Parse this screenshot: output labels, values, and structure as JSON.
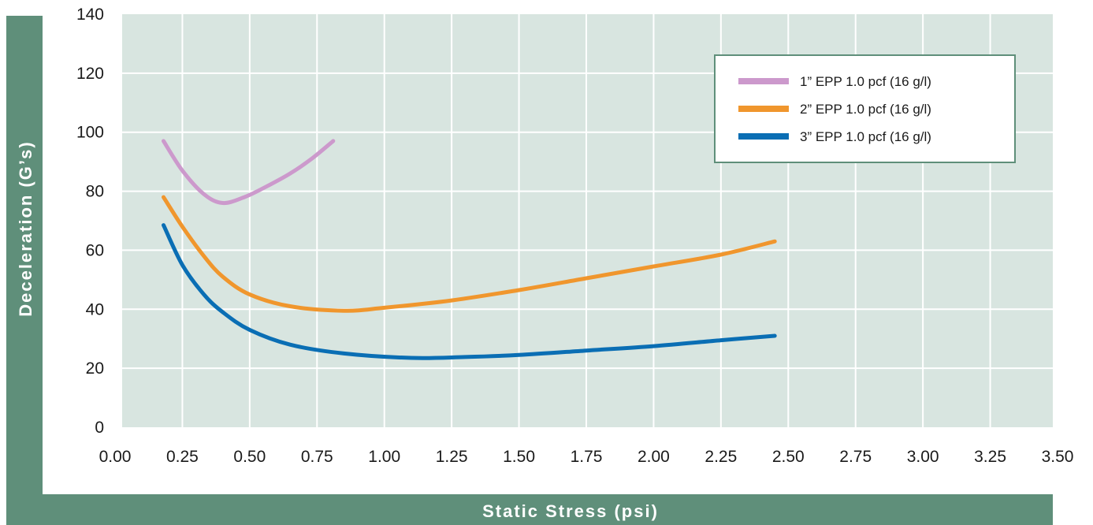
{
  "chart_data": {
    "type": "line",
    "title": "",
    "xlabel": "Static Stress (psi)",
    "ylabel": "Deceleration (G’s)",
    "xlim": [
      0,
      3.5
    ],
    "ylim": [
      0,
      140
    ],
    "x_ticks": [
      "0.00",
      "0.25",
      "0.50",
      "0.75",
      "1.00",
      "1.25",
      "1.50",
      "1.75",
      "2.00",
      "2.25",
      "2.50",
      "2.75",
      "3.00",
      "3.25",
      "3.50"
    ],
    "y_ticks": [
      "0",
      "20",
      "40",
      "60",
      "80",
      "100",
      "120",
      "140"
    ],
    "grid": true,
    "legend_position": "top-right",
    "series": [
      {
        "name": "1” EPP 1.0 pcf (16 g/l)",
        "color": "#cc99cc",
        "points": [
          [
            0.18,
            97
          ],
          [
            0.25,
            87
          ],
          [
            0.33,
            79
          ],
          [
            0.4,
            76
          ],
          [
            0.48,
            78
          ],
          [
            0.55,
            81
          ],
          [
            0.65,
            86
          ],
          [
            0.73,
            91
          ],
          [
            0.81,
            97
          ]
        ]
      },
      {
        "name": "2” EPP 1.0 pcf (16 g/l)",
        "color": "#f0962d",
        "points": [
          [
            0.18,
            78
          ],
          [
            0.25,
            68
          ],
          [
            0.33,
            58
          ],
          [
            0.4,
            51
          ],
          [
            0.5,
            45
          ],
          [
            0.65,
            41
          ],
          [
            0.85,
            39.5
          ],
          [
            1.0,
            40.5
          ],
          [
            1.25,
            43
          ],
          [
            1.5,
            46.5
          ],
          [
            1.75,
            50.5
          ],
          [
            2.0,
            54.5
          ],
          [
            2.25,
            58.5
          ],
          [
            2.45,
            63
          ]
        ]
      },
      {
        "name": "3” EPP 1.0 pcf (16 g/l)",
        "color": "#0a6eb4",
        "points": [
          [
            0.18,
            68.5
          ],
          [
            0.25,
            55
          ],
          [
            0.33,
            45
          ],
          [
            0.4,
            39
          ],
          [
            0.5,
            33
          ],
          [
            0.65,
            28
          ],
          [
            0.85,
            25
          ],
          [
            1.1,
            23.5
          ],
          [
            1.3,
            23.8
          ],
          [
            1.5,
            24.5
          ],
          [
            1.75,
            26
          ],
          [
            2.0,
            27.5
          ],
          [
            2.25,
            29.5
          ],
          [
            2.45,
            31
          ]
        ]
      }
    ]
  },
  "style": {
    "plot_background": "#d8e5e0",
    "grid_color": "#ffffff",
    "axis_band_color": "#5f8f7a"
  }
}
